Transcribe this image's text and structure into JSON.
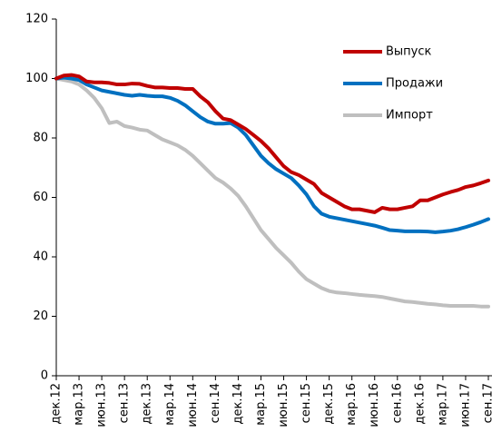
{
  "chart_data": {
    "type": "line",
    "categories": [
      "дек.12",
      null,
      null,
      "мар.13",
      null,
      null,
      "июн.13",
      null,
      null,
      "сен.13",
      null,
      null,
      "дек.13",
      null,
      null,
      "мар.14",
      null,
      null,
      "июн.14",
      null,
      null,
      "сен.14",
      null,
      null,
      "дек.14",
      null,
      null,
      "мар.15",
      null,
      null,
      "июн.15",
      null,
      null,
      "сен.15",
      null,
      null,
      "дек.15",
      null,
      null,
      "мар.16",
      null,
      null,
      "июн.16",
      null,
      null,
      "сен.16",
      null,
      null,
      "дек.16",
      null,
      null,
      "мар.17",
      null,
      null,
      "июн.17",
      null,
      null,
      "сен.17"
    ],
    "series": [
      {
        "name": "Выпуск",
        "color": "#c00000",
        "values": [
          100,
          101,
          101.2,
          100.7,
          99,
          98.7,
          98.7,
          98.5,
          98,
          98,
          98.3,
          98.2,
          97.5,
          97,
          97,
          96.8,
          96.8,
          96.5,
          96.5,
          94,
          92,
          89,
          86.5,
          86,
          84.5,
          83,
          81,
          79,
          76.5,
          73.5,
          70.5,
          68.5,
          67.5,
          66,
          64.5,
          61.5,
          60,
          58.5,
          57,
          56,
          56,
          55.5,
          55,
          56.5,
          56,
          56,
          56.5,
          57,
          59,
          59,
          60,
          61,
          61.8,
          62.5,
          63.5,
          64,
          64.8,
          65.7
        ]
      },
      {
        "name": "Продажи",
        "color": "#0070c0",
        "values": [
          100,
          100.3,
          100,
          99.5,
          98,
          97,
          96,
          95.5,
          95,
          94.5,
          94.2,
          94.5,
          94.2,
          94,
          94,
          93.5,
          92.5,
          91,
          89,
          87,
          85.5,
          84.8,
          84.8,
          85,
          83.5,
          81,
          77.5,
          74,
          71.5,
          69.5,
          68,
          66.5,
          64,
          61,
          57,
          54.5,
          53.5,
          53,
          52.5,
          52,
          51.5,
          51,
          50.5,
          49.8,
          49,
          48.8,
          48.6,
          48.6,
          48.6,
          48.5,
          48.3,
          48.5,
          48.8,
          49.3,
          50,
          50.8,
          51.7,
          52.7
        ]
      },
      {
        "name": "Импорт",
        "color": "#bfbfbf",
        "values": [
          100,
          99.5,
          99,
          98,
          96,
          93.5,
          90,
          85,
          85.5,
          84,
          83.5,
          82.8,
          82.5,
          81,
          79.5,
          78.5,
          77.5,
          76,
          74,
          71.5,
          69,
          66.5,
          65,
          63,
          60.5,
          57,
          53,
          49,
          46,
          43,
          40.5,
          38,
          35,
          32.5,
          31,
          29.5,
          28.5,
          28,
          27.8,
          27.5,
          27.2,
          27,
          26.8,
          26.5,
          26,
          25.5,
          25,
          24.8,
          24.5,
          24.2,
          24,
          23.7,
          23.5,
          23.5,
          23.5,
          23.5,
          23.3,
          23.3
        ]
      }
    ],
    "ylim": [
      0,
      120
    ],
    "yticks": [
      0,
      20,
      40,
      60,
      80,
      100,
      120
    ],
    "grid": false
  }
}
